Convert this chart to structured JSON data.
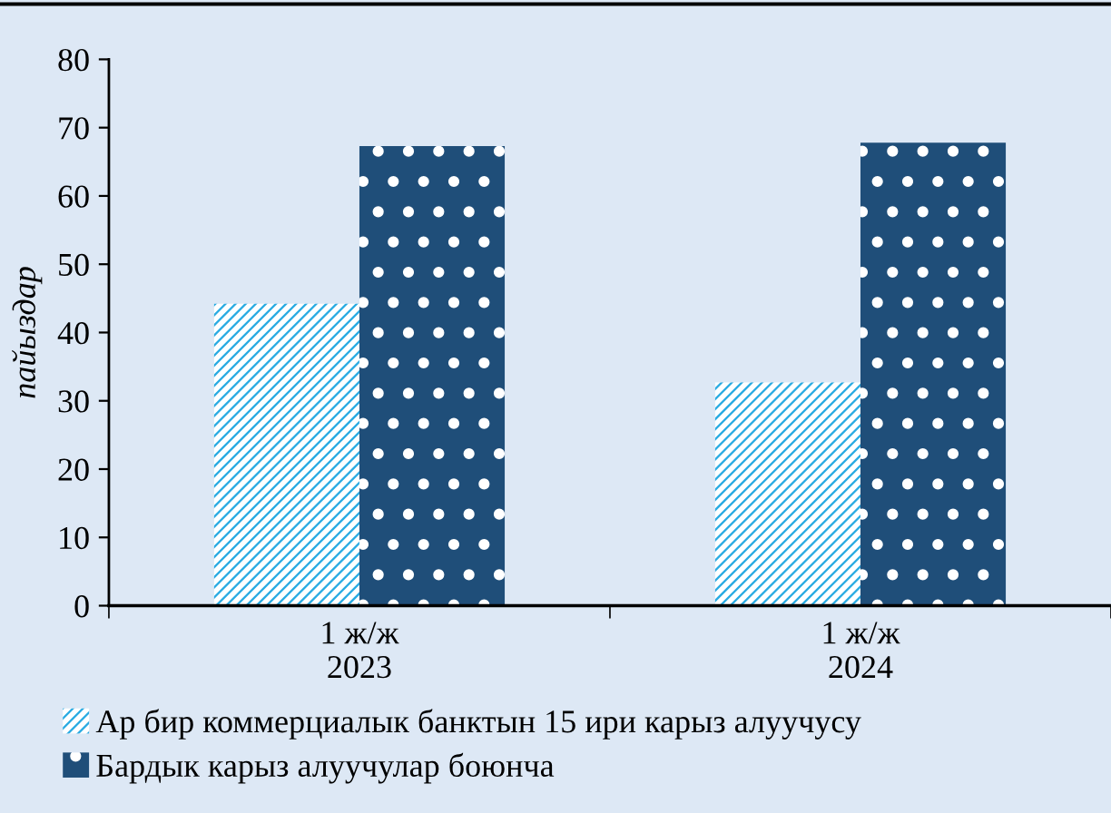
{
  "chart_data": {
    "type": "bar",
    "ylabel": "пайыздар",
    "categories": [
      "1 ж/ж\n2023",
      "1 ж/ж\n2024"
    ],
    "series": [
      {
        "name": "Ар бир коммерциалык банктын 15 ири карыз алуучусу",
        "color": "#29abe2",
        "values": [
          44.2,
          32.7
        ]
      },
      {
        "name": "Бардык карыз алуучулар боюнча",
        "color": "#1f4e79",
        "values": [
          67.3,
          67.8
        ]
      }
    ],
    "ylim": [
      0,
      80
    ],
    "yticks": [
      0,
      10,
      20,
      30,
      40,
      50,
      60,
      70,
      80
    ],
    "grid": false,
    "legend": "bottom"
  }
}
